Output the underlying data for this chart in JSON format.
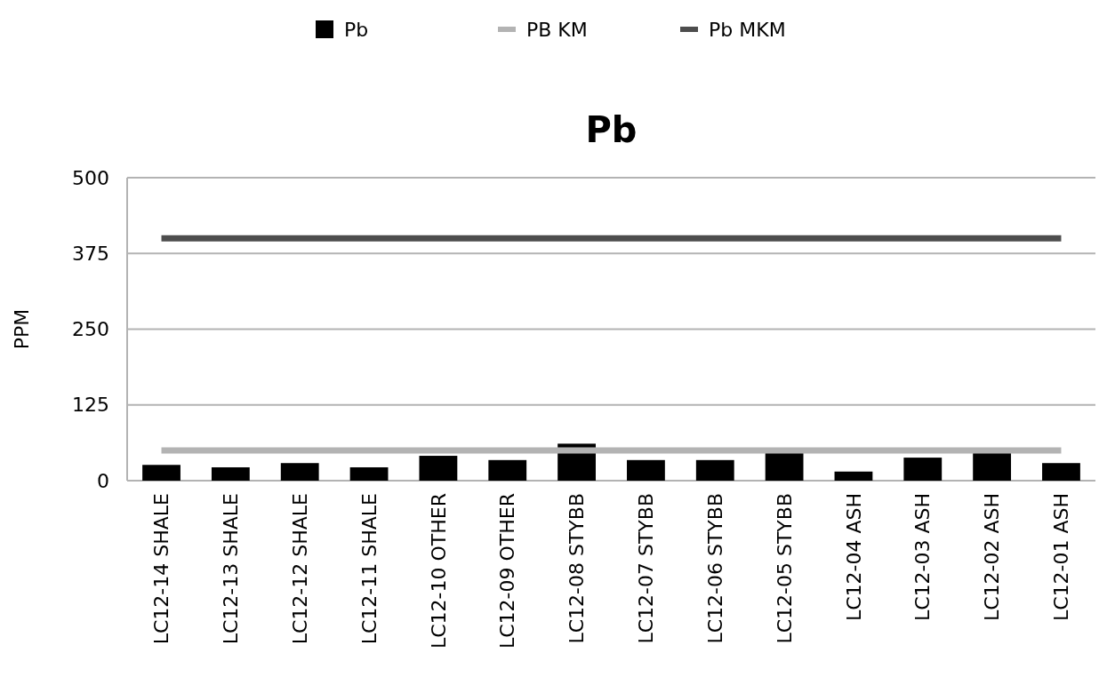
{
  "chart_data": {
    "type": "bar",
    "title": "Pb",
    "ylabel": "PPM",
    "categories": [
      "LC12-14 SHALE",
      "LC12-13 SHALE",
      "LC12-12 SHALE",
      "LC12-11 SHALE",
      "LC12-10 OTHER",
      "LC12-09 OTHER",
      "LC12-08 STYBB",
      "LC12-07 STYBB",
      "LC12-06 STYBB",
      "LC12-05 STYBB",
      "LC12-04 ASH",
      "LC12-03 ASH",
      "LC12-02 ASH",
      "LC12-01 ASH"
    ],
    "series": [
      {
        "name": "Pb",
        "color": "#000000",
        "values": [
          26,
          22,
          29,
          22,
          41,
          34,
          61,
          34,
          34,
          47,
          15,
          38,
          47,
          29
        ]
      },
      {
        "name": "PB KM",
        "type": "line",
        "color": "#b3b3b3",
        "values": [
          50,
          50,
          50,
          50,
          50,
          50,
          50,
          50,
          50,
          50,
          50,
          50,
          50,
          50
        ]
      },
      {
        "name": "Pb MKM",
        "type": "line",
        "color": "#4d4d4d",
        "values": [
          400,
          400,
          400,
          400,
          400,
          400,
          400,
          400,
          400,
          400,
          400,
          400,
          400,
          400
        ]
      }
    ],
    "ylim": [
      0,
      500
    ],
    "yticks": [
      0,
      125,
      250,
      375,
      500
    ],
    "grid": "y",
    "legend": "top",
    "marker": "none",
    "line_style": "solid"
  }
}
